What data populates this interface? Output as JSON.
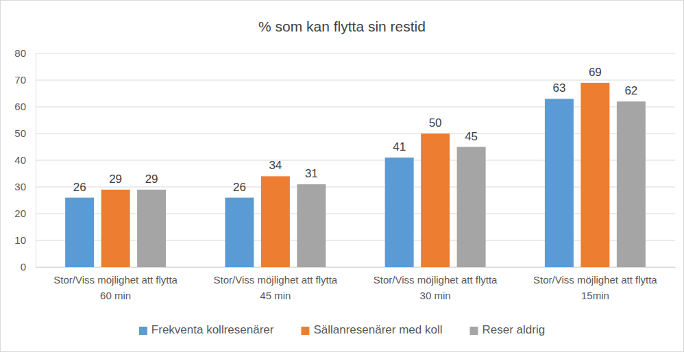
{
  "chart_data": {
    "type": "bar",
    "title": "% som kan flytta sin restid",
    "categories": [
      "Stor/Viss möjlighet att flytta\n60 min",
      "Stor/Viss möjlighet att flytta\n45 min",
      "Stor/Viss möjlighet att flytta\n30 min",
      "Stor/Viss möjlighet att flytta\n15min"
    ],
    "series": [
      {
        "name": "Frekventa kollresenärer",
        "color": "#5b9bd5",
        "values": [
          26,
          26,
          41,
          63
        ]
      },
      {
        "name": "Sällanresenärer med koll",
        "color": "#ed7d31",
        "values": [
          29,
          34,
          50,
          69
        ]
      },
      {
        "name": "Reser aldrig",
        "color": "#a5a5a5",
        "values": [
          29,
          31,
          45,
          62
        ]
      }
    ],
    "ylim": [
      0,
      80
    ],
    "yticks": [
      0,
      10,
      20,
      30,
      40,
      50,
      60,
      70,
      80
    ],
    "grid": true,
    "data_labels": true,
    "legend": "bottom"
  }
}
